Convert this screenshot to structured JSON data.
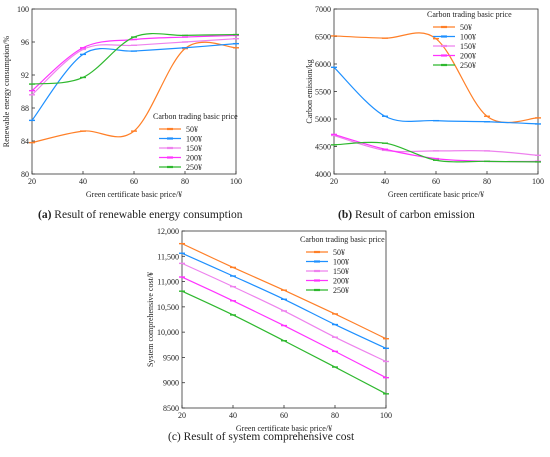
{
  "legend_title": "Carbon trading basic price",
  "panels": [
    {
      "letter": "(a)",
      "caption": "Result of renewable energy consumption"
    },
    {
      "letter": "(b)",
      "caption": "Result of carbon emission"
    },
    {
      "letter": "(c)",
      "caption": "Result of system comprehensive cost"
    }
  ],
  "colors": {
    "50¥": "#ff7f27",
    "100¥": "#1e90ff",
    "150¥": "#ee82ee",
    "200¥": "#ff33ff",
    "250¥": "#2eb82e"
  },
  "chart_data": [
    {
      "type": "line",
      "xlabel": "Green certificate basic price/¥",
      "ylabel": "Renewable energy consumption/%",
      "x": [
        20,
        40,
        60,
        80,
        100
      ],
      "xlim": [
        20,
        100
      ],
      "ylim": [
        80,
        100
      ],
      "xticks": [
        20,
        40,
        60,
        80,
        100
      ],
      "yticks": [
        80,
        84,
        88,
        92,
        96,
        100
      ],
      "legend_position": "center-right",
      "series": [
        {
          "name": "50¥",
          "values": [
            83.8,
            85.2,
            85.2,
            95.2,
            95.3
          ]
        },
        {
          "name": "100¥",
          "values": [
            86.5,
            94.5,
            94.9,
            95.3,
            95.8
          ]
        },
        {
          "name": "150¥",
          "values": [
            89.6,
            95.1,
            95.6,
            96.0,
            96.4
          ]
        },
        {
          "name": "200¥",
          "values": [
            90.1,
            95.3,
            96.3,
            96.6,
            96.8
          ]
        },
        {
          "name": "250¥",
          "values": [
            90.9,
            91.7,
            96.6,
            96.8,
            96.9
          ]
        }
      ]
    },
    {
      "type": "line",
      "xlabel": "Green certificate basic price/¥",
      "ylabel": "Carbon emission/kg",
      "x": [
        20,
        40,
        60,
        80,
        100
      ],
      "xlim": [
        20,
        100
      ],
      "ylim": [
        4000,
        7000
      ],
      "xticks": [
        20,
        40,
        60,
        80,
        100
      ],
      "yticks": [
        4000,
        4500,
        5000,
        5500,
        6000,
        6500,
        7000
      ],
      "legend_position": "top-right",
      "series": [
        {
          "name": "50¥",
          "values": [
            6510,
            6470,
            6460,
            5050,
            5020
          ]
        },
        {
          "name": "100¥",
          "values": [
            5940,
            5050,
            4970,
            4950,
            4910
          ]
        },
        {
          "name": "150¥",
          "values": [
            4700,
            4430,
            4420,
            4420,
            4340
          ]
        },
        {
          "name": "200¥",
          "values": [
            4720,
            4450,
            4280,
            4230,
            4230
          ]
        },
        {
          "name": "250¥",
          "values": [
            4530,
            4560,
            4250,
            4230,
            4220
          ]
        }
      ]
    },
    {
      "type": "line",
      "xlabel": "Green certificate basic price/¥",
      "ylabel": "System comprehensive cost/¥",
      "x": [
        20,
        40,
        60,
        80,
        100
      ],
      "xlim": [
        20,
        100
      ],
      "ylim": [
        8500,
        12000
      ],
      "xticks": [
        20,
        40,
        60,
        80,
        100
      ],
      "yticks": [
        8500,
        9000,
        9500,
        10000,
        10500,
        11000,
        11500,
        12000
      ],
      "ytick_labels": [
        "8500",
        "9000",
        "9500",
        "10,000",
        "10,500",
        "11,000",
        "11,500",
        "12,000"
      ],
      "legend_position": "top-right",
      "series": [
        {
          "name": "50¥",
          "values": [
            11750,
            11280,
            10830,
            10360,
            9870
          ]
        },
        {
          "name": "100¥",
          "values": [
            11560,
            11110,
            10650,
            10150,
            9680
          ]
        },
        {
          "name": "150¥",
          "values": [
            11360,
            10900,
            10420,
            9900,
            9420
          ]
        },
        {
          "name": "200¥",
          "values": [
            11090,
            10620,
            10130,
            9620,
            9100
          ]
        },
        {
          "name": "250¥",
          "values": [
            10810,
            10340,
            9830,
            9310,
            8780
          ]
        }
      ]
    }
  ]
}
